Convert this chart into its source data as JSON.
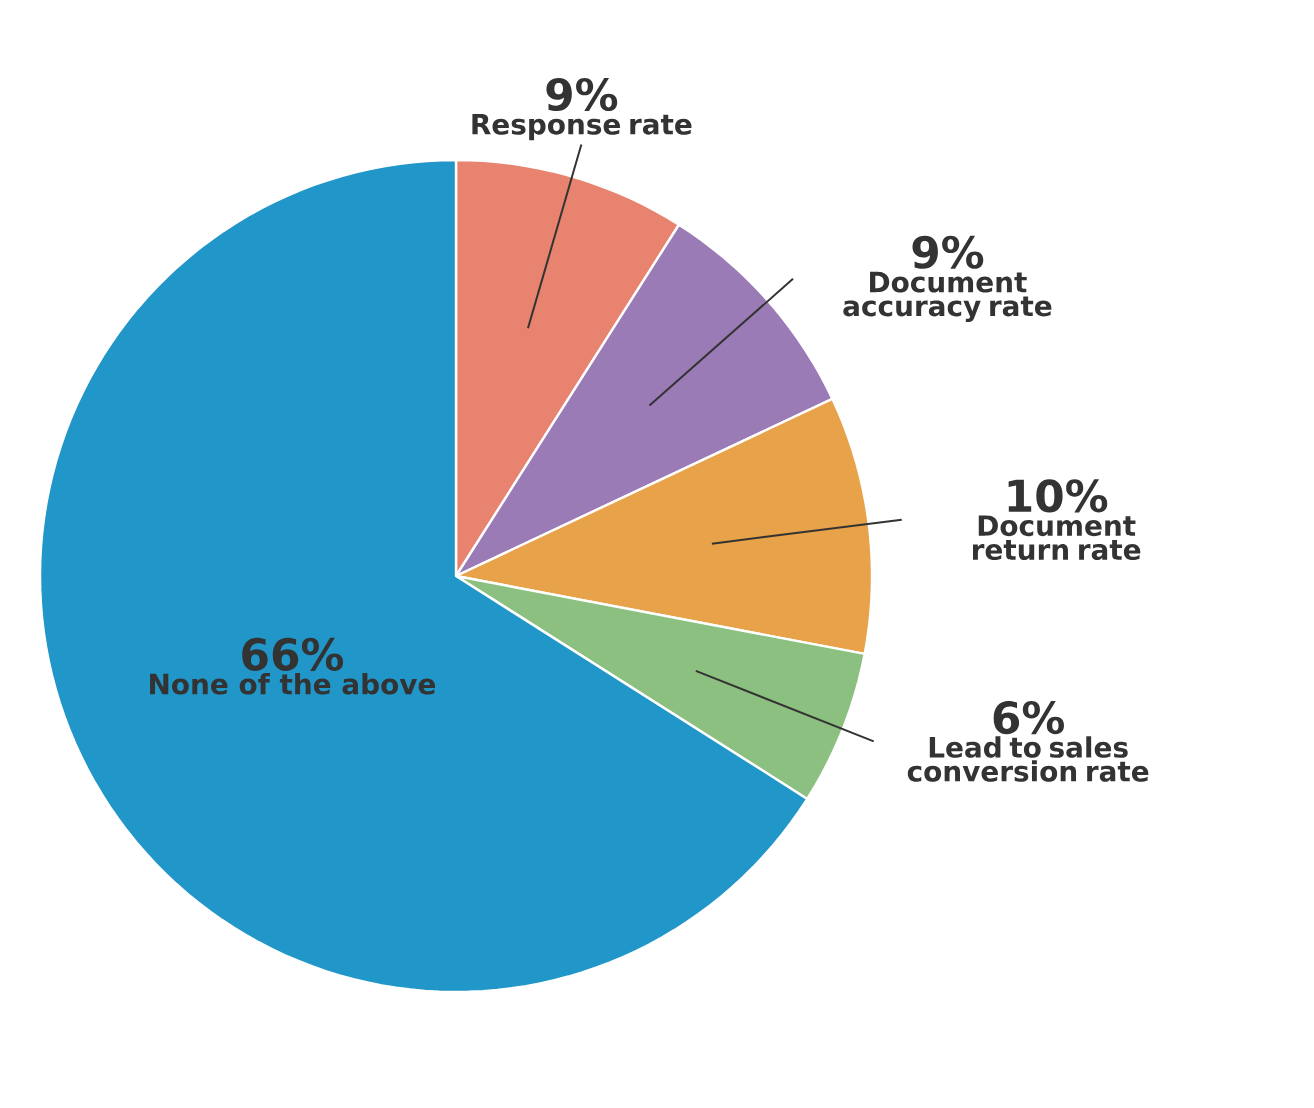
{
  "chart_data": {
    "type": "pie",
    "categories": [
      "Response rate",
      "Document accuracy rate",
      "Document return rate",
      "Lead to sales conversion rate",
      "None of the above"
    ],
    "values": [
      9,
      9,
      10,
      6,
      66
    ],
    "value_labels": [
      "9%",
      "9%",
      "10%",
      "6%",
      "66%"
    ],
    "colors": [
      "#e8836f",
      "#9b7bb5",
      "#e8a24a",
      "#8cc080",
      "#2196c8"
    ]
  }
}
